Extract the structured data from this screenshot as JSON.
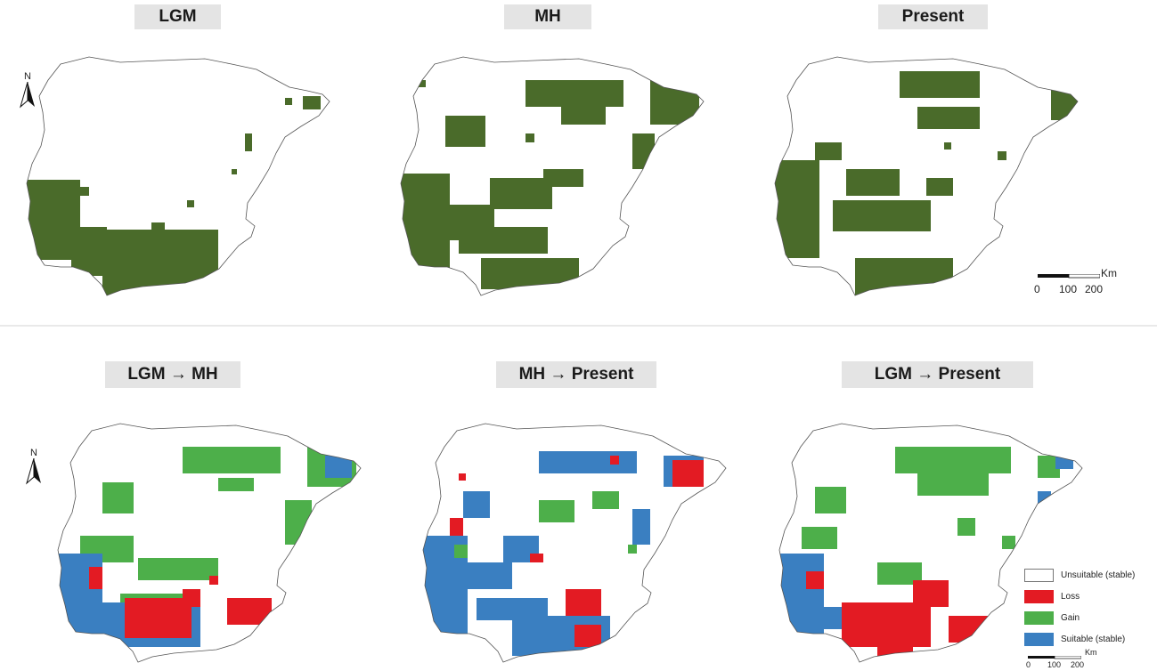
{
  "panels": [
    {
      "id": "lgm",
      "title": "LGM",
      "type": "binary"
    },
    {
      "id": "mh",
      "title": "MH",
      "type": "binary"
    },
    {
      "id": "present",
      "title": "Present",
      "type": "binary"
    },
    {
      "id": "lgm-mh",
      "title": "LGM → MH",
      "type": "change"
    },
    {
      "id": "mh-present",
      "title": "MH  → Present",
      "type": "change"
    },
    {
      "id": "lgm-present",
      "title": "LGM  → Present",
      "type": "change"
    }
  ],
  "north_label": "N",
  "scale": {
    "unit": "Km",
    "ticks": [
      "0",
      "100",
      "200"
    ]
  },
  "legend": [
    {
      "label": "Unsuitable (stable)",
      "color": "#ffffff"
    },
    {
      "label": "Loss",
      "color": "#e31b23"
    },
    {
      "label": "Gain",
      "color": "#4daf4a"
    },
    {
      "label": "Suitable (stable)",
      "color": "#3a7fc1"
    }
  ],
  "colors": {
    "suitable": "#4a6b2a",
    "coastline": "#555555"
  }
}
